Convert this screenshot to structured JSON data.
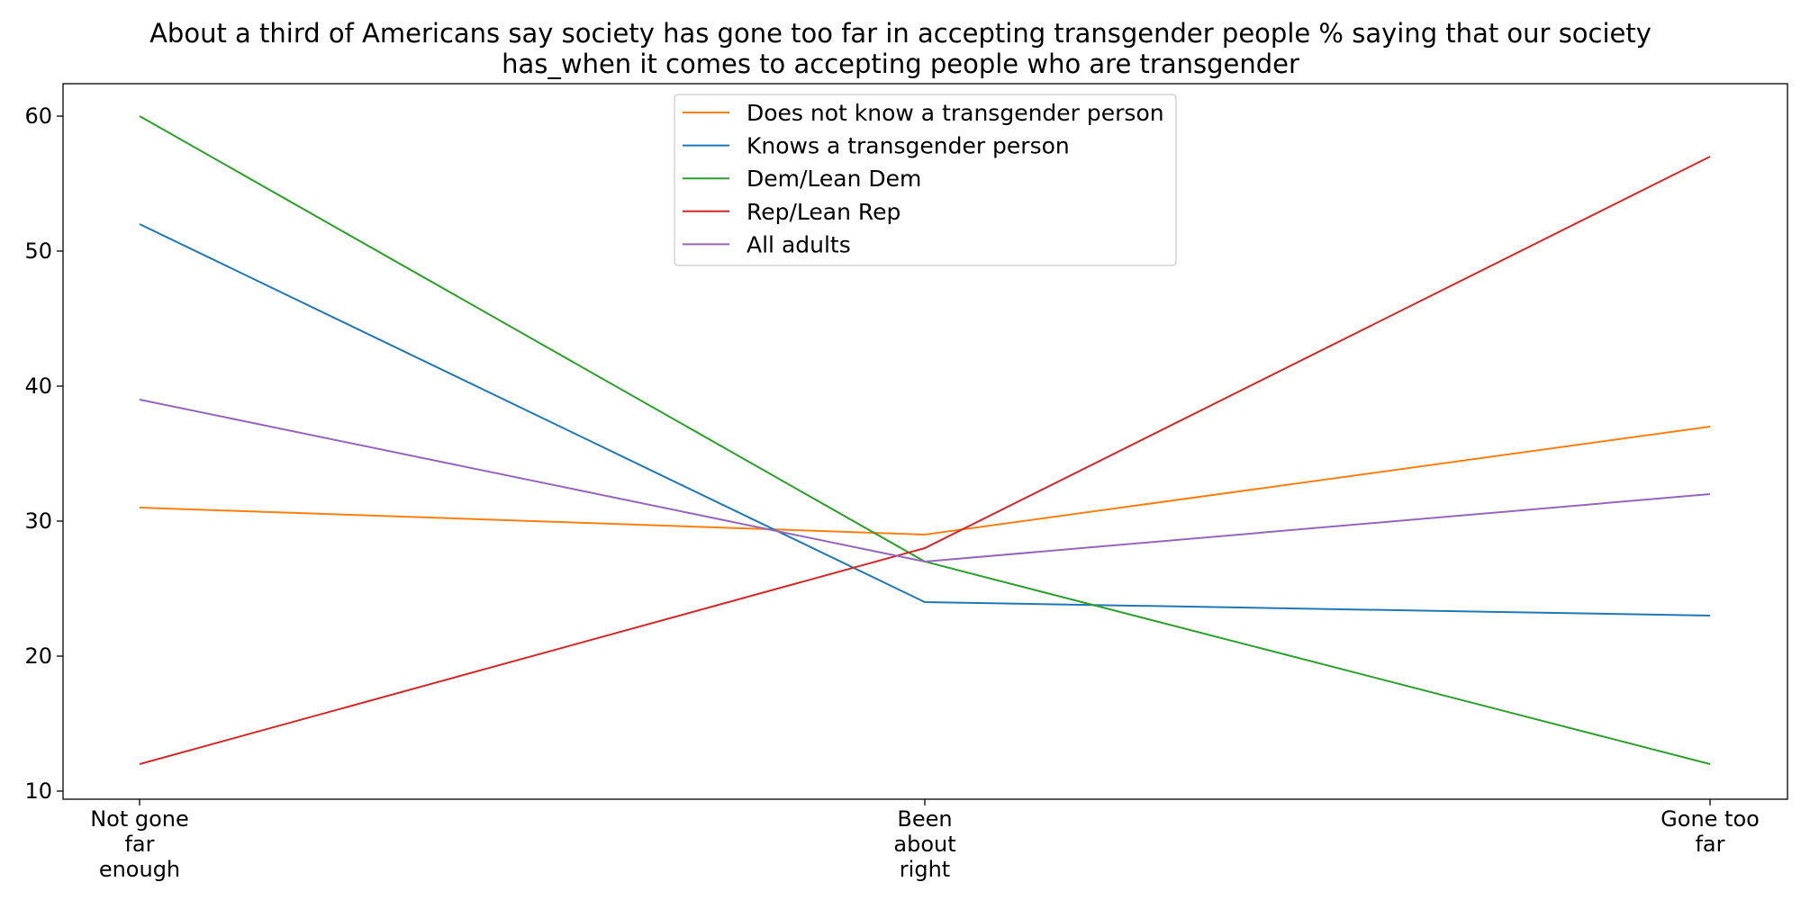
{
  "chart_data": {
    "type": "line",
    "title_lines": [
      "About a third of Americans say society has gone too far in accepting transgender people % saying that our society",
      "has_when it comes to accepting people who are transgender"
    ],
    "categories": [
      [
        "Not gone",
        "far",
        "enough"
      ],
      [
        "Been",
        "about",
        "right"
      ],
      [
        "Gone too",
        "far"
      ]
    ],
    "ylim": [
      9.4,
      62.4
    ],
    "yticks": [
      10,
      20,
      30,
      40,
      50,
      60
    ],
    "grid": false,
    "legend_position": "upper center",
    "series": [
      {
        "name": "Does not know a transgender person",
        "color": "#ff7f0e",
        "values": [
          31,
          29,
          37
        ]
      },
      {
        "name": "Knows a transgender person",
        "color": "#1f77b4",
        "values": [
          52,
          24,
          23
        ]
      },
      {
        "name": "Dem/Lean Dem",
        "color": "#2ca02c",
        "values": [
          60,
          27,
          12
        ]
      },
      {
        "name": "Rep/Lean Rep",
        "color": "#d62728",
        "values": [
          12,
          28,
          57
        ]
      },
      {
        "name": "All adults",
        "color": "#9467bd",
        "values": [
          39,
          27,
          32
        ]
      }
    ]
  }
}
